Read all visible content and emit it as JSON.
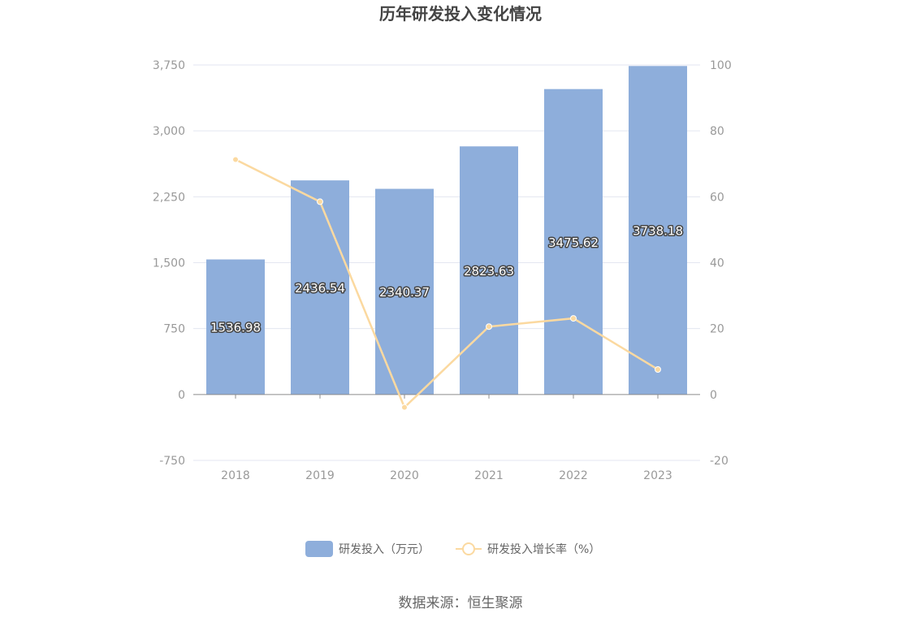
{
  "chart_data": {
    "type": "bar",
    "title": "历年研发投入变化情况",
    "categories": [
      "2018",
      "2019",
      "2020",
      "2021",
      "2022",
      "2023"
    ],
    "series": [
      {
        "name": "研发投入（万元）",
        "type": "bar",
        "axis": "left",
        "color": "#8eaedb",
        "values": [
          1536.98,
          2436.54,
          2340.37,
          2823.63,
          3475.62,
          3738.18
        ],
        "labels": [
          "1536.98",
          "2436.54",
          "2340.37",
          "2823.63",
          "3475.62",
          "3738.18"
        ]
      },
      {
        "name": "研发投入增长率（%）",
        "type": "line",
        "axis": "right",
        "color": "#fbd9a0",
        "values": [
          71.3,
          58.5,
          -3.9,
          20.6,
          23.1,
          7.6
        ]
      }
    ],
    "left_axis": {
      "ylim": [
        -750,
        3750
      ],
      "ticks": [
        "-750",
        "0",
        "750",
        "1,500",
        "2,250",
        "3,000",
        "3,750"
      ],
      "tick_values": [
        -750,
        0,
        750,
        1500,
        2250,
        3000,
        3750
      ]
    },
    "right_axis": {
      "ylim": [
        -20,
        100
      ],
      "ticks": [
        "-20",
        "0",
        "20",
        "40",
        "60",
        "80",
        "100"
      ],
      "tick_values": [
        -20,
        0,
        20,
        40,
        60,
        80,
        100
      ]
    },
    "grid": true,
    "legend_position": "bottom-center"
  },
  "source": "数据来源：恒生聚源"
}
